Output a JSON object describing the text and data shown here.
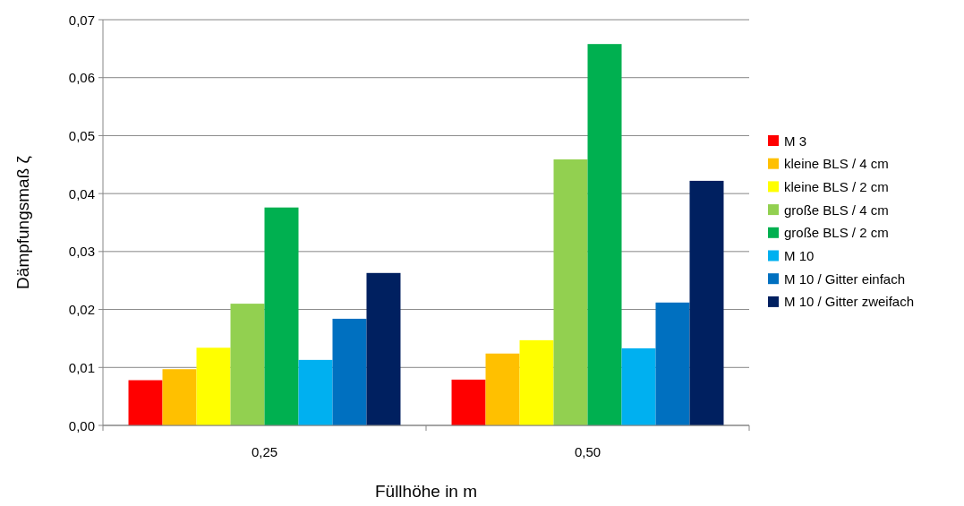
{
  "chart_data": {
    "type": "bar",
    "xlabel": "Füllhöhe in m",
    "ylabel": "Dämpfungsmaß ζ",
    "categories": [
      "0,25",
      "0,50"
    ],
    "series": [
      {
        "name": "M 3",
        "color": "#ff0000",
        "values": [
          0.0078,
          0.0079
        ]
      },
      {
        "name": "kleine BLS / 4 cm",
        "color": "#ffc000",
        "values": [
          0.0097,
          0.0124
        ]
      },
      {
        "name": "kleine BLS / 2 cm",
        "color": "#ffff00",
        "values": [
          0.0134,
          0.0147
        ]
      },
      {
        "name": "große BLS / 4 cm",
        "color": "#92d050",
        "values": [
          0.021,
          0.0459
        ]
      },
      {
        "name": "große BLS / 2 cm",
        "color": "#00b050",
        "values": [
          0.0376,
          0.0658
        ]
      },
      {
        "name": "M 10",
        "color": "#00b0f0",
        "values": [
          0.0113,
          0.0133
        ]
      },
      {
        "name": "M 10 / Gitter einfach",
        "color": "#0070c0",
        "values": [
          0.0184,
          0.0212
        ]
      },
      {
        "name": "M 10 / Gitter zweifach",
        "color": "#002060",
        "values": [
          0.0263,
          0.0422
        ]
      }
    ],
    "ylim": [
      0,
      0.07
    ],
    "yticks": [
      {
        "value": 0,
        "label": "0,00"
      },
      {
        "value": 0.01,
        "label": "0,01"
      },
      {
        "value": 0.02,
        "label": "0,02"
      },
      {
        "value": 0.03,
        "label": "0,03"
      },
      {
        "value": 0.04,
        "label": "0,04"
      },
      {
        "value": 0.05,
        "label": "0,05"
      },
      {
        "value": 0.06,
        "label": "0,06"
      },
      {
        "value": 0.07,
        "label": "0,07"
      }
    ],
    "grid": "y",
    "legend": "right"
  }
}
